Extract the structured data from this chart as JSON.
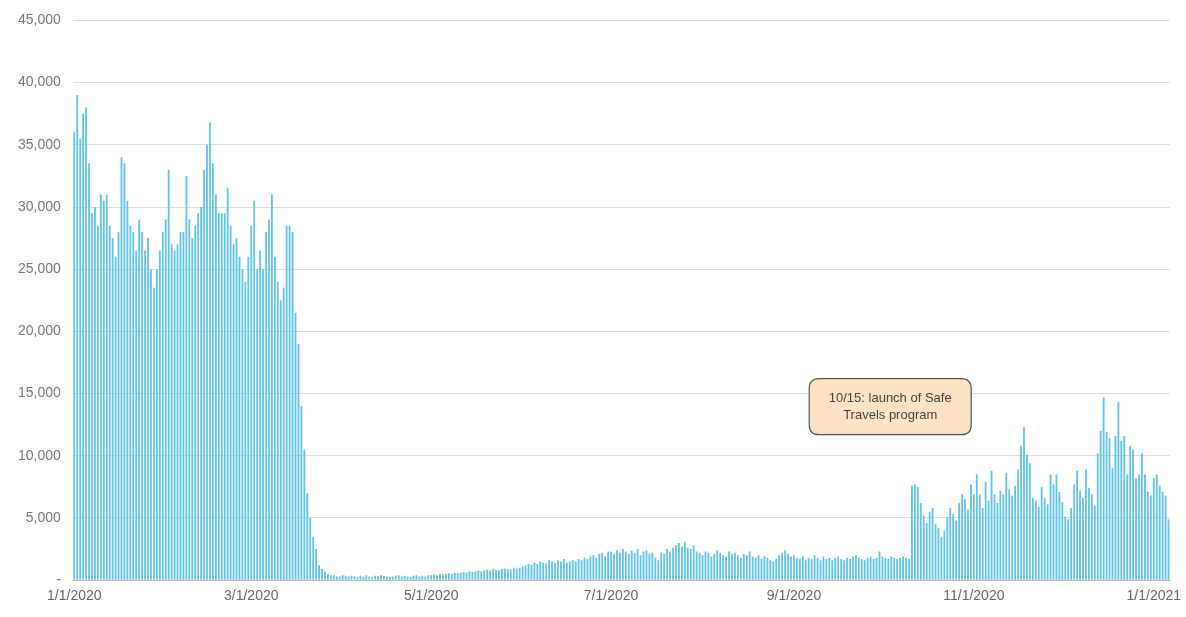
{
  "chart_data": {
    "type": "bar",
    "categories": [
      "1/1/2020",
      null,
      null,
      null,
      null,
      null,
      null,
      null,
      null,
      null,
      null,
      null,
      null,
      null,
      null,
      null,
      null,
      null,
      null,
      null,
      null,
      null,
      null,
      null,
      null,
      null,
      null,
      null,
      null,
      null,
      null,
      null,
      null,
      null,
      null,
      null,
      null,
      null,
      null,
      null,
      null,
      null,
      null,
      null,
      null,
      null,
      null,
      null,
      null,
      null,
      null,
      null,
      null,
      null,
      null,
      null,
      null,
      null,
      null,
      null,
      "3/1/2020",
      null,
      null,
      null,
      null,
      null,
      null,
      null,
      null,
      null,
      null,
      null,
      null,
      null,
      null,
      null,
      null,
      null,
      null,
      null,
      null,
      null,
      null,
      null,
      null,
      null,
      null,
      null,
      null,
      null,
      null,
      null,
      null,
      null,
      null,
      null,
      null,
      null,
      null,
      null,
      null,
      null,
      null,
      null,
      null,
      null,
      null,
      null,
      null,
      null,
      null,
      null,
      null,
      null,
      null,
      null,
      null,
      null,
      null,
      null,
      null,
      "5/1/2020",
      null,
      null,
      null,
      null,
      null,
      null,
      null,
      null,
      null,
      null,
      null,
      null,
      null,
      null,
      null,
      null,
      null,
      null,
      null,
      null,
      null,
      null,
      null,
      null,
      null,
      null,
      null,
      null,
      null,
      null,
      null,
      null,
      null,
      null,
      null,
      null,
      null,
      null,
      null,
      null,
      null,
      null,
      null,
      null,
      null,
      null,
      null,
      null,
      null,
      null,
      null,
      null,
      null,
      null,
      null,
      null,
      null,
      null,
      null,
      null,
      "7/1/2020",
      null,
      null,
      null,
      null,
      null,
      null,
      null,
      null,
      null,
      null,
      null,
      null,
      null,
      null,
      null,
      null,
      null,
      null,
      null,
      null,
      null,
      null,
      null,
      null,
      null,
      null,
      null,
      null,
      null,
      null,
      null,
      null,
      null,
      null,
      null,
      null,
      null,
      null,
      null,
      null,
      null,
      null,
      null,
      null,
      null,
      null,
      null,
      null,
      null,
      null,
      null,
      null,
      null,
      null,
      null,
      null,
      null,
      null,
      null,
      null,
      null,
      "9/1/2020",
      null,
      null,
      null,
      null,
      null,
      null,
      null,
      null,
      null,
      null,
      null,
      null,
      null,
      null,
      null,
      null,
      null,
      null,
      null,
      null,
      null,
      null,
      null,
      null,
      null,
      null,
      null,
      null,
      null,
      null,
      null,
      null,
      null,
      null,
      null,
      null,
      null,
      null,
      null,
      null,
      null,
      null,
      null,
      null,
      null,
      null,
      null,
      null,
      null,
      null,
      null,
      null,
      null,
      null,
      null,
      null,
      null,
      null,
      null,
      null,
      "11/1/2020",
      null,
      null,
      null,
      null,
      null,
      null,
      null,
      null,
      null,
      null,
      null,
      null,
      null,
      null,
      null,
      null,
      null,
      null,
      null,
      null,
      null,
      null,
      null,
      null,
      null,
      null,
      null,
      null,
      null,
      null,
      null,
      null,
      null,
      null,
      null,
      null,
      null,
      null,
      null,
      null,
      null,
      null,
      null,
      null,
      null,
      null,
      null,
      null,
      null,
      null,
      null,
      null,
      null,
      null,
      null,
      null,
      null,
      null,
      null,
      null,
      "1/1/2021",
      null,
      null,
      null,
      null,
      null
    ],
    "values": [
      36000,
      39000,
      35500,
      37500,
      38000,
      33500,
      29500,
      30000,
      28500,
      31000,
      30500,
      31000,
      28500,
      27500,
      26000,
      28000,
      34000,
      33500,
      30500,
      28500,
      28000,
      26500,
      29000,
      28000,
      26500,
      27500,
      25000,
      23500,
      25000,
      26500,
      28000,
      29000,
      33000,
      27000,
      26500,
      27000,
      28000,
      28000,
      32500,
      29000,
      27500,
      28500,
      29500,
      30000,
      33000,
      35000,
      36800,
      33500,
      31000,
      29500,
      29500,
      29500,
      31500,
      28500,
      27000,
      27500,
      26000,
      25000,
      24000,
      26000,
      28500,
      30500,
      25000,
      26500,
      25000,
      28000,
      29000,
      31000,
      26000,
      24000,
      22500,
      23500,
      28500,
      28500,
      28000,
      21500,
      19000,
      14000,
      10500,
      7000,
      5000,
      3500,
      2500,
      1200,
      900,
      700,
      500,
      400,
      400,
      300,
      300,
      400,
      350,
      300,
      350,
      300,
      250,
      350,
      300,
      400,
      300,
      250,
      350,
      300,
      400,
      350,
      300,
      250,
      300,
      350,
      400,
      300,
      350,
      300,
      250,
      350,
      400,
      300,
      350,
      300,
      400,
      400,
      450,
      400,
      500,
      450,
      500,
      550,
      500,
      600,
      550,
      600,
      650,
      600,
      700,
      650,
      700,
      750,
      700,
      800,
      850,
      800,
      900,
      850,
      800,
      900,
      950,
      900,
      850,
      1000,
      950,
      1000,
      1100,
      1200,
      1300,
      1250,
      1400,
      1300,
      1500,
      1400,
      1350,
      1600,
      1500,
      1400,
      1600,
      1500,
      1700,
      1400,
      1500,
      1600,
      1500,
      1700,
      1600,
      1800,
      1700,
      1900,
      2000,
      1800,
      2100,
      2200,
      1900,
      2300,
      2300,
      2100,
      2400,
      2200,
      2500,
      2300,
      2100,
      2400,
      2200,
      2500,
      2000,
      2300,
      2400,
      2100,
      2200,
      1800,
      1600,
      2200,
      2100,
      2500,
      2300,
      2600,
      2800,
      3000,
      2700,
      3100,
      2600,
      2500,
      2800,
      2300,
      2200,
      2000,
      2300,
      2200,
      1900,
      2100,
      2400,
      2200,
      2000,
      1900,
      2300,
      2100,
      2200,
      2000,
      1800,
      2100,
      2000,
      2300,
      1900,
      1800,
      2000,
      1700,
      1900,
      1800,
      1600,
      1500,
      1700,
      2000,
      2200,
      2400,
      2100,
      1900,
      2000,
      1800,
      1700,
      1900,
      1600,
      1800,
      1700,
      2000,
      1800,
      1600,
      1900,
      1700,
      1800,
      1600,
      1800,
      1900,
      1700,
      1600,
      1800,
      1700,
      1900,
      2000,
      1800,
      1700,
      1600,
      1800,
      1900,
      1700,
      1800,
      2300,
      1900,
      1800,
      1700,
      1900,
      1800,
      1700,
      1800,
      1900,
      1800,
      1700,
      7600,
      7700,
      7500,
      6200,
      5200,
      4600,
      5500,
      5800,
      4500,
      4200,
      3500,
      4000,
      5100,
      5800,
      5300,
      4800,
      6200,
      6900,
      6500,
      5700,
      7700,
      6900,
      8500,
      6900,
      5800,
      7900,
      6400,
      8800,
      6900,
      6200,
      7200,
      6900,
      8600,
      7300,
      6800,
      7600,
      8900,
      10800,
      12300,
      10100,
      9400,
      6600,
      6400,
      5900,
      7500,
      6600,
      6100,
      8500,
      7700,
      8500,
      7100,
      6300,
      5100,
      4900,
      5800,
      7700,
      8800,
      7200,
      6600,
      8900,
      7400,
      6900,
      6000,
      10200,
      12000,
      14700,
      11900,
      11400,
      9000,
      11600,
      14300,
      11200,
      11600,
      8500,
      10800,
      10500,
      8200,
      8500,
      10200,
      8500,
      7100,
      6800,
      8200,
      8500,
      7600,
      7100,
      6800,
      4900
    ],
    "color": "#62c3e6",
    "ylim": [
      0,
      45000
    ],
    "yticks": [
      {
        "value": 0,
        "label": "-"
      },
      {
        "value": 5000,
        "label": "5,000"
      },
      {
        "value": 10000,
        "label": "10,000"
      },
      {
        "value": 15000,
        "label": "15,000"
      },
      {
        "value": 20000,
        "label": "20,000"
      },
      {
        "value": 25000,
        "label": "25,000"
      },
      {
        "value": 30000,
        "label": "30,000"
      },
      {
        "value": 35000,
        "label": "35,000"
      },
      {
        "value": 40000,
        "label": "40,000"
      },
      {
        "value": 45000,
        "label": "45,000"
      }
    ],
    "grid": "y",
    "annotations": [
      "10/15: launch of Safe Travels program"
    ]
  }
}
